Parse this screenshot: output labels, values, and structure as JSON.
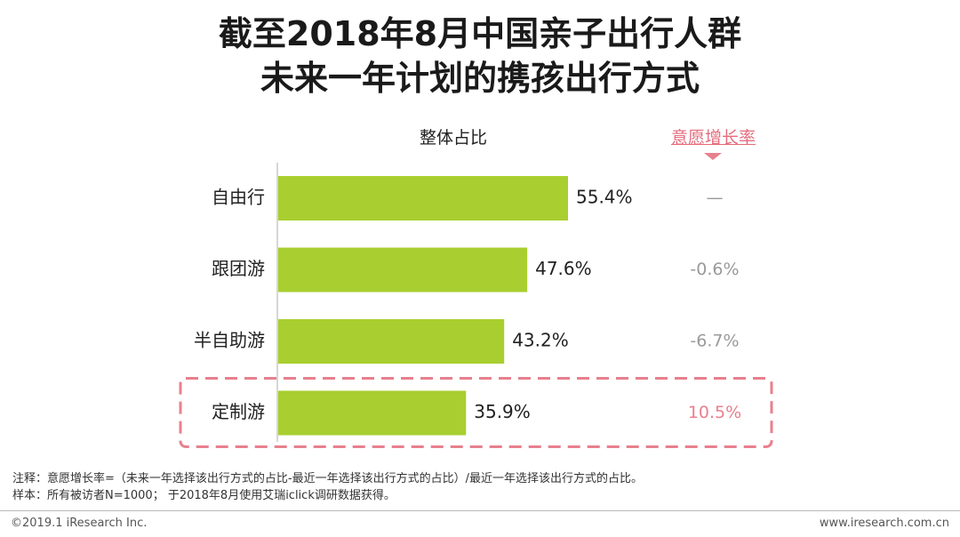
{
  "title_line1": "截至2018年8月中国亲子出行人群",
  "title_line2": "未来一年计划的携孩出行方式",
  "share_header": "整体占比",
  "growth_header": "意愿增长率",
  "chart_data": {
    "type": "bar",
    "orientation": "horizontal",
    "categories": [
      "自由行",
      "跟团游",
      "半自助游",
      "定制游"
    ],
    "values": [
      55.4,
      47.6,
      43.2,
      35.9
    ],
    "value_labels": [
      "55.4%",
      "47.6%",
      "43.2%",
      "35.9%"
    ],
    "growth_labels": [
      "—",
      "-0.6%",
      "-6.7%",
      "10.5%"
    ],
    "highlight_index": 3,
    "unit": "%",
    "bar_color": "#a8cf2f",
    "highlight_color": "#e8808e"
  },
  "note1": "注释：意愿增长率=（未来一年选择该出行方式的占比-最近一年选择该出行方式的占比）/最近一年选择该出行方式的占比。",
  "note2": "样本：所有被访者N=1000； 于2018年8月使用艾瑞iclick调研数据获得。",
  "footer_left": "©2019.1 iResearch Inc.",
  "footer_right": "www.iresearch.com.cn"
}
